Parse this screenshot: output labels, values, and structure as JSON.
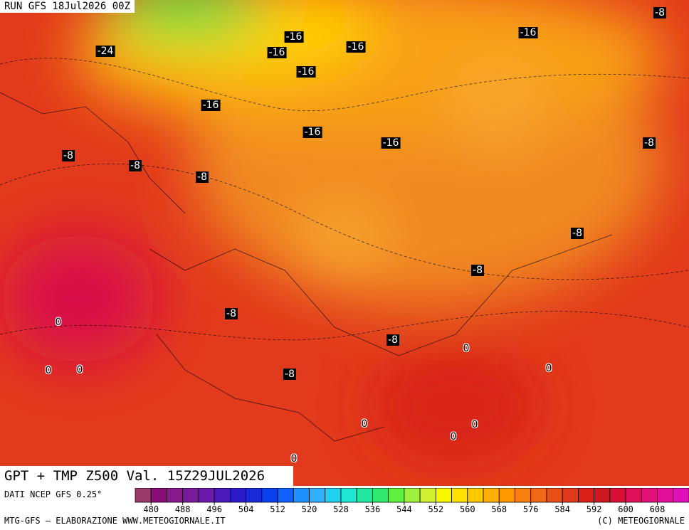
{
  "header": {
    "run": "RUN GFS 18Jul2026 00Z"
  },
  "map": {
    "labels": [
      -8,
      -16,
      -16,
      -24,
      -16,
      -16,
      -16,
      -16,
      -16,
      -16,
      -8,
      -8,
      -8,
      -8,
      -8,
      -8,
      -8,
      0,
      -8,
      0,
      0,
      0,
      0,
      -8,
      0,
      0,
      0,
      0
    ]
  },
  "footer": {
    "title": "GPT + TMP Z500 Val. 15Z29JUL2026",
    "source": "DATI NCEP GFS 0.25°",
    "credit": "MTG-GFS – ELABORAZIONE WWW.METEOGIORNALE.IT",
    "copyright": "(C) METEOGIORNALE"
  },
  "legend": {
    "ticks": [
      480,
      488,
      496,
      504,
      512,
      520,
      528,
      536,
      544,
      552,
      560,
      568,
      576,
      584,
      592,
      600,
      608
    ],
    "colors": [
      "#9b3a6b",
      "#8b0d7a",
      "#8a1a8a",
      "#7a1a9a",
      "#6a1aa8",
      "#4a1ab8",
      "#2a1ac8",
      "#1a2ad8",
      "#0a40f0",
      "#1060ff",
      "#2090ff",
      "#30b0ff",
      "#20d0f0",
      "#20e8d0",
      "#20e8a0",
      "#30e870",
      "#60f040",
      "#a0f040",
      "#d0f030",
      "#f8f800",
      "#ffe000",
      "#ffc800",
      "#ffb000",
      "#ff9800",
      "#f88010",
      "#f06818",
      "#e85018",
      "#e03818",
      "#d82018",
      "#d01820",
      "#d81038",
      "#e01058",
      "#e01078",
      "#e01098",
      "#e010b8"
    ]
  }
}
